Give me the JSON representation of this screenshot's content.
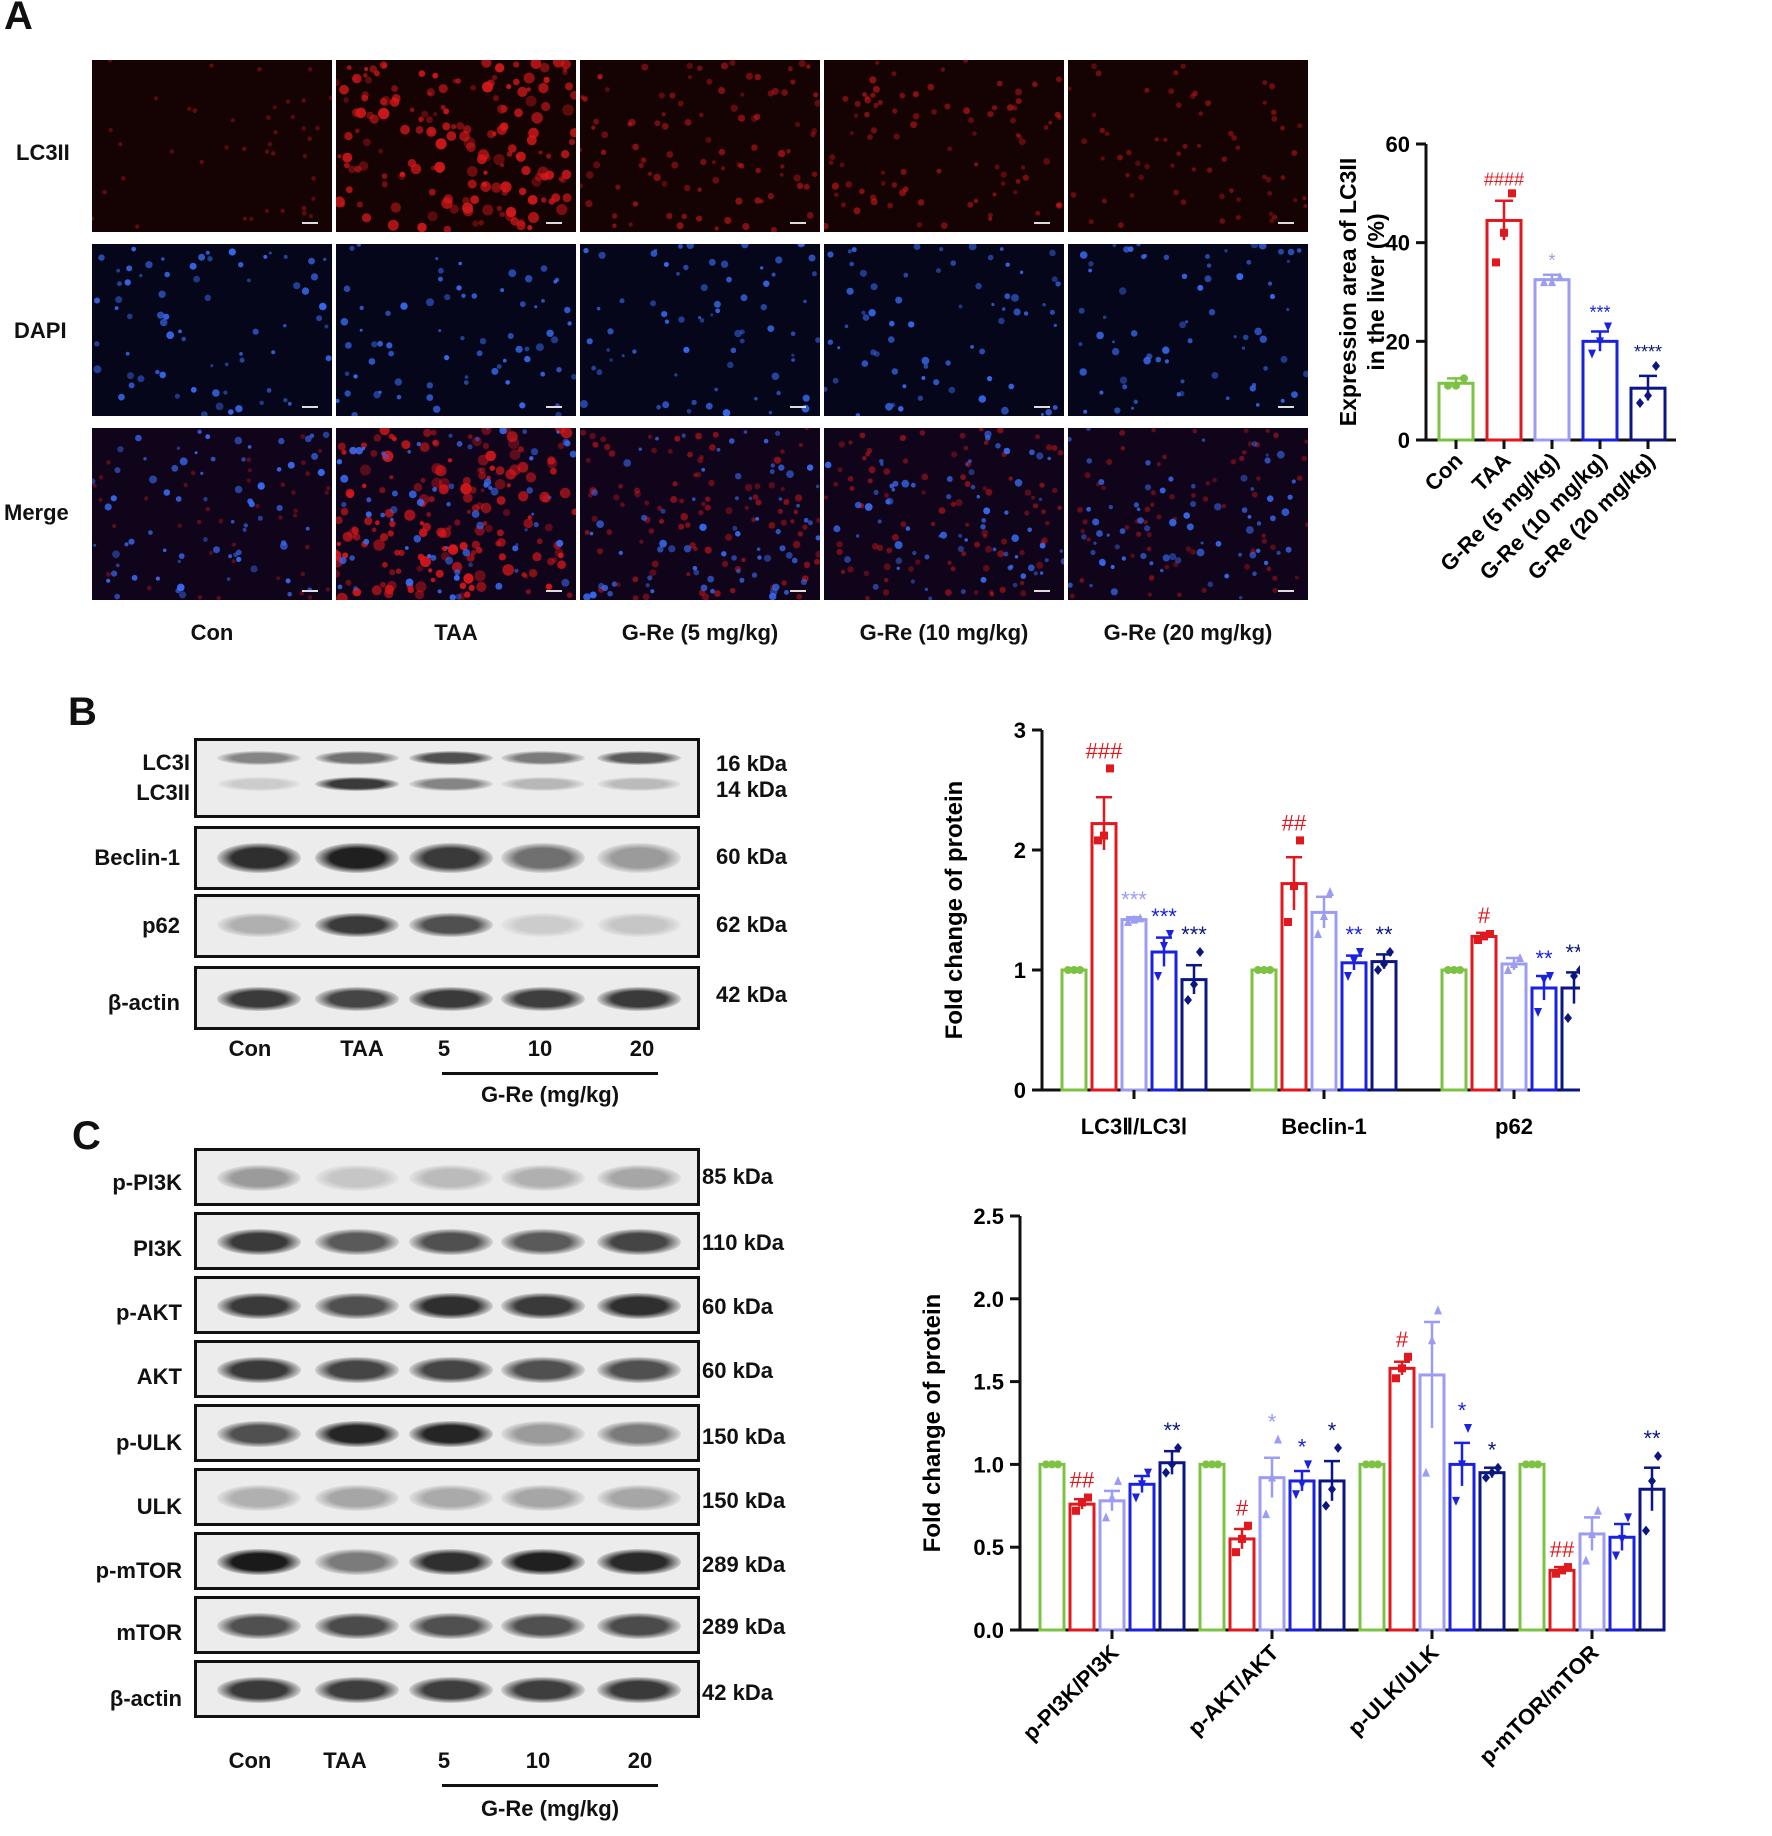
{
  "panelA": {
    "letter": "A",
    "row_labels": [
      "LC3II",
      "DAPI",
      "Merge"
    ],
    "col_labels": [
      "Con",
      "TAA",
      "G-Re (5 mg/kg)",
      "G-Re (10 mg/kg)",
      "G-Re (20 mg/kg)"
    ],
    "image_intensity": [
      0.1,
      0.95,
      0.45,
      0.4,
      0.25
    ]
  },
  "panelB": {
    "letter": "B",
    "protein_labels": [
      "LC3I",
      "LC3II",
      "Beclin-1",
      "p62",
      "β-actin"
    ],
    "kda_labels": [
      "16 kDa",
      "14 kDa",
      "60 kDa",
      "62 kDa",
      "42 kDa"
    ],
    "lanes": [
      "Con",
      "TAA",
      "5",
      "10",
      "20"
    ],
    "group_label": "G-Re (mg/kg)"
  },
  "panelC": {
    "letter": "C",
    "protein_labels": [
      "p-PI3K",
      "PI3K",
      "p-AKT",
      "AKT",
      "p-ULK",
      "ULK",
      "p-mTOR",
      "mTOR",
      "β-actin"
    ],
    "kda_labels": [
      "85 kDa",
      "110 kDa",
      "60 kDa",
      "60 kDa",
      "150 kDa",
      "150 kDa",
      "289 kDa",
      "289 kDa",
      "42 kDa"
    ],
    "lanes": [
      "Con",
      "TAA",
      "5",
      "10",
      "20"
    ],
    "group_label": "G-Re (mg/kg)"
  },
  "colors": {
    "Con": "#7dc243",
    "TAA": "#e0191f",
    "G-Re (5 mg/kg)": "#9b9cf2",
    "G-Re (10 mg/kg)": "#1a22e0",
    "G-Re (20 mg/kg)": "#0b1680"
  },
  "chart_data": [
    {
      "id": "chartA",
      "type": "bar",
      "ylabel": "Expression area of LC3II in the liver (%)",
      "ylabel_lines": [
        "Expression area of LC3II",
        "in the liver (%)"
      ],
      "ylim": [
        0,
        60
      ],
      "yticks": [
        "0",
        "20",
        "40",
        "60"
      ],
      "categories": [
        "Con",
        "TAA",
        "G-Re (5 mg/kg)",
        "G-Re (10 mg/kg)",
        "G-Re (20 mg/kg)"
      ],
      "values": [
        11.5,
        44.5,
        32.5,
        20,
        10.5
      ],
      "errors": [
        1,
        4,
        1,
        2,
        2.5
      ],
      "points": [
        [
          11,
          11,
          12.5
        ],
        [
          36,
          42,
          50
        ],
        [
          32,
          32,
          33
        ],
        [
          17.5,
          20,
          23
        ],
        [
          7.5,
          9,
          15
        ]
      ],
      "annotations": [
        "",
        "####",
        "*",
        "***",
        "****"
      ]
    },
    {
      "id": "chartB",
      "type": "bar",
      "ylabel": "Fold change of protein",
      "ylim": [
        0,
        3
      ],
      "yticks": [
        "0",
        "1",
        "2",
        "3"
      ],
      "groups": [
        "LC3Ⅱ/LC3Ⅰ",
        "Beclin-1",
        "p62"
      ],
      "series": [
        {
          "name": "Con",
          "values": [
            1,
            1,
            1
          ],
          "errors": [
            0,
            0,
            0
          ],
          "points": [
            [
              1,
              1,
              1
            ],
            [
              1,
              1,
              1
            ],
            [
              1,
              1,
              1
            ]
          ],
          "annotations": [
            "",
            "",
            ""
          ]
        },
        {
          "name": "TAA",
          "values": [
            2.22,
            1.72,
            1.28
          ],
          "errors": [
            0.22,
            0.22,
            0.03
          ],
          "points": [
            [
              2.08,
              2.12,
              2.68
            ],
            [
              1.4,
              1.7,
              2.08
            ],
            [
              1.25,
              1.28,
              1.3
            ]
          ],
          "annotations": [
            "###",
            "##",
            "#"
          ]
        },
        {
          "name": "G-Re (5 mg/kg)",
          "values": [
            1.42,
            1.48,
            1.05
          ],
          "errors": [
            0.02,
            0.13,
            0.05
          ],
          "points": [
            [
              1.4,
              1.42,
              1.43
            ],
            [
              1.3,
              1.45,
              1.65
            ],
            [
              1.0,
              1.05,
              1.1
            ]
          ],
          "annotations": [
            "***",
            "",
            ""
          ]
        },
        {
          "name": "G-Re (10 mg/kg)",
          "values": [
            1.15,
            1.06,
            0.85
          ],
          "errors": [
            0.12,
            0.06,
            0.1
          ],
          "points": [
            [
              0.95,
              1.2,
              1.3
            ],
            [
              0.95,
              1.08,
              1.15
            ],
            [
              0.65,
              0.92,
              0.95
            ]
          ],
          "annotations": [
            "***",
            "**",
            "**"
          ]
        },
        {
          "name": "G-Re (20 mg/kg)",
          "values": [
            0.92,
            1.07,
            0.85
          ],
          "errors": [
            0.12,
            0.06,
            0.13
          ],
          "points": [
            [
              0.75,
              0.88,
              1.15
            ],
            [
              1.0,
              1.05,
              1.15
            ],
            [
              0.6,
              0.95,
              1.0
            ]
          ],
          "annotations": [
            "***",
            "**",
            "**"
          ]
        }
      ]
    },
    {
      "id": "chartC",
      "type": "bar",
      "ylabel": "Fold change of protein",
      "ylim": [
        0,
        2.5
      ],
      "yticks": [
        "0.0",
        "0.5",
        "1.0",
        "1.5",
        "2.0",
        "2.5"
      ],
      "groups": [
        "p-PI3K/PI3K",
        "p-AKT/AKT",
        "p-ULK/ULK",
        "p-mTOR/mTOR"
      ],
      "series": [
        {
          "name": "Con",
          "values": [
            1,
            1,
            1,
            1
          ],
          "errors": [
            0,
            0,
            0,
            0
          ],
          "points": [
            [
              1,
              1,
              1
            ],
            [
              1,
              1,
              1
            ],
            [
              1,
              1,
              1
            ],
            [
              1,
              1,
              1
            ]
          ],
          "annotations": [
            "",
            "",
            "",
            ""
          ]
        },
        {
          "name": "TAA",
          "values": [
            0.76,
            0.55,
            1.58,
            0.36
          ],
          "errors": [
            0.03,
            0.06,
            0.04,
            0.02
          ],
          "points": [
            [
              0.72,
              0.77,
              0.8
            ],
            [
              0.47,
              0.55,
              0.63
            ],
            [
              1.52,
              1.58,
              1.65
            ],
            [
              0.34,
              0.36,
              0.38
            ]
          ],
          "annotations": [
            "##",
            "#",
            "#",
            "##"
          ]
        },
        {
          "name": "G-Re (5 mg/kg)",
          "values": [
            0.78,
            0.92,
            1.54,
            0.58
          ],
          "errors": [
            0.06,
            0.12,
            0.32,
            0.1
          ],
          "points": [
            [
              0.68,
              0.8,
              0.9
            ],
            [
              0.7,
              0.92,
              1.15
            ],
            [
              0.95,
              1.75,
              1.93
            ],
            [
              0.42,
              0.58,
              0.72
            ]
          ],
          "annotations": [
            "",
            "*",
            "",
            ""
          ]
        },
        {
          "name": "G-Re (10 mg/kg)",
          "values": [
            0.88,
            0.9,
            1.0,
            0.56
          ],
          "errors": [
            0.05,
            0.06,
            0.13,
            0.08
          ],
          "points": [
            [
              0.8,
              0.88,
              0.95
            ],
            [
              0.82,
              0.88,
              1.0
            ],
            [
              0.78,
              1.0,
              1.22
            ],
            [
              0.45,
              0.55,
              0.68
            ]
          ],
          "annotations": [
            "",
            "*",
            "*",
            ""
          ]
        },
        {
          "name": "G-Re (20 mg/kg)",
          "values": [
            1.01,
            0.9,
            0.95,
            0.85
          ],
          "errors": [
            0.07,
            0.12,
            0.03,
            0.13
          ],
          "points": [
            [
              0.95,
              1.0,
              1.1
            ],
            [
              0.75,
              0.85,
              1.1
            ],
            [
              0.92,
              0.95,
              0.98
            ],
            [
              0.6,
              0.9,
              1.05
            ]
          ],
          "annotations": [
            "**",
            "*",
            "*",
            "**"
          ]
        }
      ]
    }
  ]
}
